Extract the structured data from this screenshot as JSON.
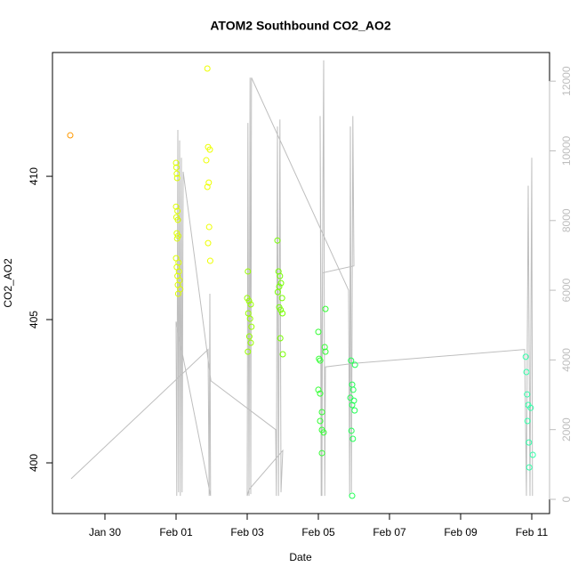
{
  "chart_data": {
    "type": "scatter",
    "title": "ATOM2 Southbound CO2_AO2",
    "x_label": "Date",
    "y_label": "CO2_AO2",
    "xlim": [
      -1.475,
      12.5
    ],
    "xticks": [
      {
        "value": 0,
        "label": "Jan 30"
      },
      {
        "value": 2,
        "label": "Feb 01"
      },
      {
        "value": 4,
        "label": "Feb 03"
      },
      {
        "value": 6,
        "label": "Feb 05"
      },
      {
        "value": 8,
        "label": "Feb 07"
      },
      {
        "value": 10,
        "label": "Feb 09"
      },
      {
        "value": 12,
        "label": "Feb 11"
      }
    ],
    "ylim": [
      398.23,
      414.32
    ],
    "yticks": [
      400,
      405,
      410
    ],
    "y2lim": [
      -409,
      12822
    ],
    "y2ticks": [
      0,
      2000,
      4000,
      6000,
      8000,
      10000,
      12000
    ],
    "y2_color": "#bebebe",
    "series": [
      {
        "type": "line",
        "axis": "y2",
        "color": "#bebebe",
        "x": [
          -0.95,
          2.9,
          2.93,
          2.95,
          2.97,
          2.0,
          2.02,
          2.05,
          2.07,
          2.1,
          2.12,
          2.15,
          2.17,
          2.2,
          2.98,
          4.8,
          4.82,
          4.85,
          4.88,
          4.92,
          4.95,
          5.0,
          4.05,
          4.0,
          4.02,
          4.05,
          4.08,
          4.1,
          4.12,
          6.85,
          6.88,
          6.9,
          6.93,
          6.97,
          7.0,
          6.12,
          6.1,
          6.05,
          6.08,
          6.15,
          6.18,
          6.2,
          7.0,
          11.8,
          11.85,
          11.9,
          11.95,
          12.0,
          12.02
        ],
        "values": [
          590,
          4300,
          100,
          5900,
          100,
          5100,
          100,
          10600,
          200,
          10300,
          100,
          9800,
          200,
          9400,
          3400,
          2000,
          100,
          10700,
          100,
          10900,
          200,
          1400,
          280,
          100,
          10800,
          100,
          12100,
          150,
          12100,
          6000,
          100,
          10700,
          200,
          11000,
          6700,
          6500,
          100,
          11000,
          100,
          12600,
          100,
          3800,
          3900,
          4300,
          100,
          9000,
          100,
          9800,
          100
        ]
      },
      {
        "color": "#ff9900",
        "x": [
          -0.975
        ],
        "values": [
          411.43
        ]
      },
      {
        "color": "#ddff00",
        "x": [
          2.0,
          2.01,
          2.02,
          2.03,
          2.0,
          2.04,
          2.01,
          2.05,
          2.02,
          2.06,
          2.03,
          2.0,
          2.07,
          2.02,
          2.08,
          2.04,
          2.1,
          2.05,
          2.12,
          2.06
        ],
        "values": [
          410.47,
          410.31,
          410.09,
          409.94,
          408.94,
          408.79,
          408.57,
          408.48,
          408.01,
          407.92,
          407.83,
          407.14,
          406.99,
          406.83,
          406.68,
          406.52,
          406.37,
          406.21,
          406.06,
          405.9
        ]
      },
      {
        "color": "#eeff00",
        "x": [
          2.88,
          2.9,
          2.95,
          2.85,
          2.92,
          2.88,
          2.93,
          2.9,
          2.96
        ],
        "values": [
          413.76,
          411.02,
          410.93,
          410.56,
          409.78,
          409.63,
          408.23,
          407.67,
          407.05
        ]
      },
      {
        "color": "#99ff00",
        "x": [
          4.02,
          4.0,
          4.05,
          4.1,
          4.03,
          4.08,
          4.12,
          4.06,
          4.1,
          4.02
        ],
        "values": [
          406.68,
          405.75,
          405.65,
          405.53,
          405.22,
          405.03,
          404.75,
          404.41,
          404.19,
          403.88
        ]
      },
      {
        "color": "#77ff00",
        "x": [
          4.85,
          4.88,
          4.92,
          4.95,
          4.9,
          4.86,
          4.98,
          4.9,
          4.94,
          4.99,
          4.93,
          5.0
        ],
        "values": [
          407.76,
          406.68,
          406.52,
          406.27,
          406.15,
          405.96,
          405.75,
          405.43,
          405.34,
          405.22,
          404.35,
          403.79
        ]
      },
      {
        "color": "#33ff33",
        "x": [
          6.2,
          6.0,
          6.18,
          6.2,
          6.02,
          6.05,
          6.0,
          6.05,
          6.1,
          6.05,
          6.1,
          6.15,
          6.1
        ],
        "values": [
          405.37,
          404.57,
          404.04,
          403.88,
          403.63,
          403.57,
          402.55,
          402.42,
          401.77,
          401.46,
          401.15,
          401.06,
          400.34
        ]
      },
      {
        "color": "#22ff55",
        "x": [
          6.92,
          7.03,
          6.95,
          6.98,
          6.9,
          7.0,
          6.95,
          7.02,
          6.93,
          6.97,
          6.95
        ],
        "values": [
          403.57,
          403.42,
          402.73,
          402.55,
          402.27,
          402.17,
          402.02,
          401.83,
          401.12,
          400.84,
          398.85
        ]
      },
      {
        "color": "#33ffaa",
        "x": [
          11.83,
          11.85,
          11.87,
          11.9,
          11.97,
          11.88,
          11.92,
          12.03,
          11.93
        ],
        "values": [
          403.7,
          403.17,
          402.39,
          402.02,
          401.92,
          401.46,
          400.71,
          400.28,
          399.84
        ]
      }
    ]
  }
}
